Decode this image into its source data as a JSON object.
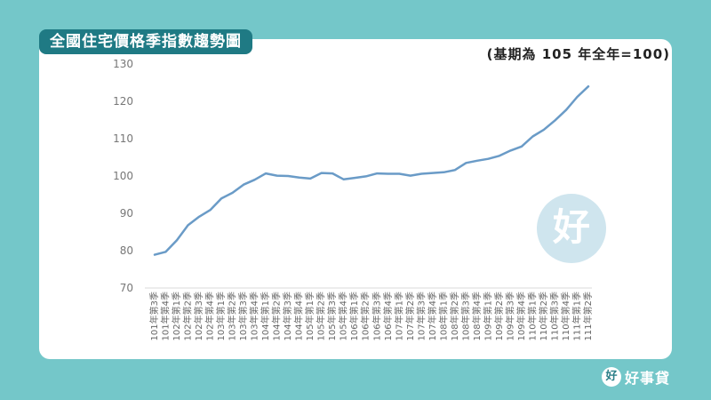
{
  "header": {
    "title": "全國住宅價格季指數趨勢圖",
    "base_note": "(基期為 105 年全年=100)"
  },
  "brand": {
    "logo_char": "好",
    "name": "好事貸",
    "watermark_char": "好"
  },
  "colors": {
    "background": "#74c7c9",
    "title_badge": "#1f7a84",
    "line": "#6a9bc7"
  },
  "chart_data": {
    "type": "line",
    "title": "全國住宅價格季指數趨勢圖",
    "subtitle": "(基期為 105 年全年=100)",
    "ylim": [
      70,
      130
    ],
    "yticks": [
      70,
      80,
      90,
      100,
      110,
      120,
      130
    ],
    "grid": false,
    "categories": [
      "101年第3季",
      "101年第4季",
      "102年第1季",
      "102年第2季",
      "102年第3季",
      "102年第4季",
      "103年第1季",
      "103年第2季",
      "103年第3季",
      "103年第4季",
      "104年第1季",
      "104年第2季",
      "104年第3季",
      "104年第4季",
      "105年第1季",
      "105年第2季",
      "105年第3季",
      "105年第4季",
      "106年第1季",
      "106年第2季",
      "106年第3季",
      "106年第4季",
      "107年第1季",
      "107年第2季",
      "107年第3季",
      "107年第4季",
      "108年第1季",
      "108年第2季",
      "108年第3季",
      "108年第4季",
      "109年第1季",
      "109年第2季",
      "109年第3季",
      "109年第4季",
      "110年第1季",
      "110年第2季",
      "110年第3季",
      "110年第4季",
      "111年第1季",
      "111年第2季"
    ],
    "series": [
      {
        "values": [
          78.9,
          79.7,
          82.8,
          86.8,
          89.1,
          90.9,
          94.0,
          95.5,
          97.7,
          99.0,
          100.7,
          100.1,
          100.0,
          99.6,
          99.3,
          100.8,
          100.7,
          99.1,
          99.5,
          99.9,
          100.7,
          100.6,
          100.6,
          100.1,
          100.6,
          100.8,
          101.0,
          101.6,
          103.5,
          104.1,
          104.6,
          105.4,
          106.8,
          107.9,
          110.6,
          112.4,
          114.9,
          117.7,
          121.2,
          124.0
        ]
      }
    ]
  }
}
